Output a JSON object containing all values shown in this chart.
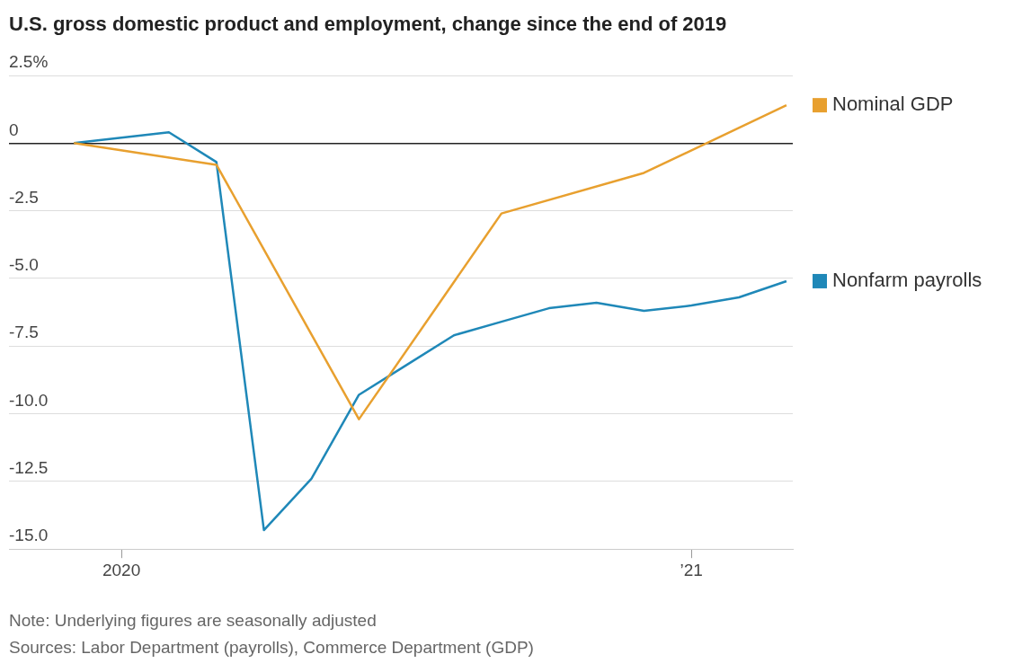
{
  "chart_data": {
    "type": "line",
    "title": "U.S. gross domestic product and employment, change since the end of 2019",
    "xlim": [
      "2019-10-20",
      "2021-03-05"
    ],
    "xticks": [
      {
        "value": "2020-01",
        "label": "2020"
      },
      {
        "value": "2021-01",
        "label": "’21"
      }
    ],
    "ylim": [
      -15,
      2.5
    ],
    "yticks": [
      {
        "value": 2.5,
        "label": "2.5%"
      },
      0,
      -2.5,
      {
        "value": -5,
        "label": "-5.0"
      },
      -7.5,
      {
        "value": -10,
        "label": "-10.0"
      },
      -12.5,
      {
        "value": -15,
        "label": "-15.0"
      }
    ],
    "grid": "y",
    "legend": "right",
    "series": [
      {
        "name": "Nominal GDP",
        "color": "#e8a02f",
        "x": [
          "2019-12",
          "2020-03",
          "2020-06",
          "2020-09",
          "2020-12",
          "2021-03"
        ],
        "values": [
          0,
          -0.8,
          -10.2,
          -2.6,
          -1.1,
          1.4
        ]
      },
      {
        "name": "Nonfarm payrolls",
        "color": "#1f88b8",
        "x": [
          "2019-12",
          "2020-02",
          "2020-03",
          "2020-04",
          "2020-05",
          "2020-06",
          "2020-07",
          "2020-08",
          "2020-09",
          "2020-10",
          "2020-11",
          "2020-12",
          "2021-01",
          "2021-02",
          "2021-03"
        ],
        "values": [
          0,
          0.4,
          -0.7,
          -14.3,
          -12.4,
          -9.3,
          -8.2,
          -7.1,
          -6.6,
          -6.1,
          -5.9,
          -6.2,
          -6.0,
          -5.7,
          -5.1
        ]
      }
    ],
    "annotations": [
      "Note: Underlying figures are seasonally adjusted",
      "Sources: Labor Department (payrolls), Commerce Department (GDP)"
    ]
  }
}
